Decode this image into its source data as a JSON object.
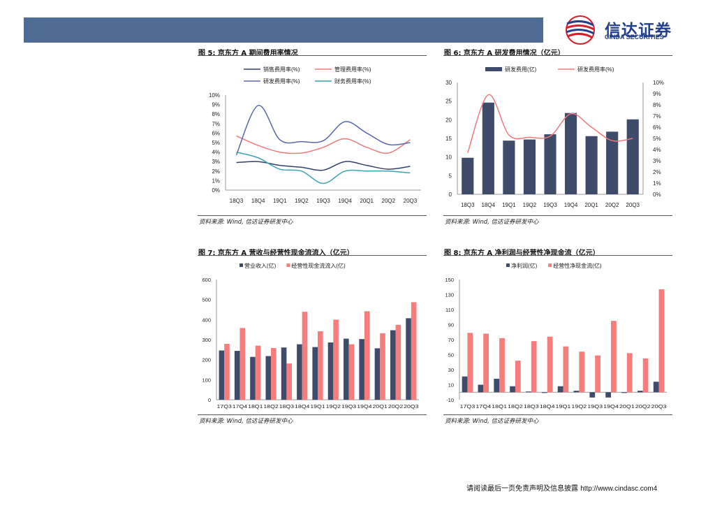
{
  "header": {
    "logo_cn": "信达证券",
    "logo_en": "CINDA SECURITIES",
    "colors": {
      "bar": "#4f6d94",
      "logo_blue": "#23418b",
      "logo_red": "#d71e2a"
    }
  },
  "fig5": {
    "title": "图 5:  京东方 A 期间费用率情况",
    "source": "资料来源:  Wind,  信达证券研发中心",
    "chart_data": {
      "type": "line",
      "categories": [
        "18Q3",
        "18Q4",
        "19Q1",
        "19Q2",
        "19Q3",
        "19Q4",
        "20Q1",
        "20Q2",
        "20Q3"
      ],
      "y_ticks": [
        "10%",
        "9%",
        "8%",
        "7%",
        "6%",
        "5%",
        "4%",
        "3%",
        "2%",
        "1%",
        "0%"
      ],
      "ylim": [
        0,
        10
      ],
      "legend_position": "top",
      "series": [
        {
          "name": "销售费用率(%)",
          "color": "#33406b",
          "values": [
            2.9,
            3.0,
            2.6,
            2.4,
            2.1,
            3.0,
            2.6,
            2.2,
            2.5
          ]
        },
        {
          "name": "管理费用率(%)",
          "color": "#f0797a",
          "values": [
            5.7,
            4.7,
            4.0,
            3.9,
            4.5,
            5.4,
            4.5,
            3.9,
            5.3
          ]
        },
        {
          "name": "研发费用率(%)",
          "color": "#5a66b0",
          "values": [
            3.7,
            8.9,
            5.3,
            5.1,
            5.2,
            7.2,
            6.0,
            4.8,
            5.0
          ]
        },
        {
          "name": "财务费用率(%)",
          "color": "#3ba3b0",
          "values": [
            4.0,
            3.4,
            2.2,
            2.0,
            0.7,
            2.0,
            2.0,
            2.0,
            1.8
          ]
        }
      ]
    }
  },
  "fig6": {
    "title": "图 6:  京东方 A 研发费用情况（亿元）",
    "source": "资料来源:  Wind,  信达证券研发中心",
    "chart_data": {
      "type": "bar",
      "categories": [
        "18Q3",
        "18Q4",
        "19Q1",
        "19Q2",
        "19Q3",
        "19Q4",
        "20Q1",
        "20Q2",
        "20Q3"
      ],
      "y_ticks_left": [
        "30",
        "25",
        "20",
        "15",
        "10",
        "5",
        "0"
      ],
      "y_ticks_right": [
        "10%",
        "9%",
        "8%",
        "7%",
        "6%",
        "5%",
        "4%",
        "3%",
        "2%",
        "1%",
        "0%"
      ],
      "ylim_left": [
        0,
        30
      ],
      "ylim_right": [
        0,
        10
      ],
      "legend_position": "top",
      "series": [
        {
          "name": "研发费用(亿)",
          "type": "bar",
          "axis": "left",
          "color": "#3e4b6b",
          "values": [
            9.8,
            24.6,
            14.4,
            14.7,
            16.1,
            21.8,
            15.6,
            16.8,
            20.1
          ]
        },
        {
          "name": "研发费用率(%)",
          "type": "line",
          "axis": "right",
          "color": "#f0797a",
          "values": [
            3.7,
            8.9,
            5.3,
            5.1,
            5.2,
            7.2,
            6.0,
            4.8,
            5.0
          ]
        }
      ]
    }
  },
  "fig7": {
    "title": "图 7:  京东方 A 营收与经营性现金流流入（亿元）",
    "source": "资料来源:  Wind,  信达证券研发中心",
    "chart_data": {
      "type": "bar",
      "categories": [
        "17Q3",
        "17Q4",
        "18Q1",
        "18Q2",
        "18Q3",
        "18Q4",
        "19Q1",
        "19Q2",
        "19Q3",
        "19Q4",
        "20Q1",
        "20Q2",
        "20Q3"
      ],
      "y_ticks": [
        "600",
        "500",
        "400",
        "300",
        "200",
        "100",
        "0"
      ],
      "ylim": [
        0,
        600
      ],
      "legend_position": "top",
      "series": [
        {
          "name": "营业收入(亿)",
          "color": "#3e4b6b",
          "values": [
            246,
            244,
            214,
            218,
            261,
            277,
            263,
            286,
            305,
            303,
            257,
            347,
            407
          ]
        },
        {
          "name": "经营性现金流流入(亿)",
          "color": "#f77d7d",
          "values": [
            279,
            358,
            270,
            258,
            181,
            439,
            342,
            400,
            277,
            442,
            332,
            374,
            487
          ]
        }
      ]
    }
  },
  "fig8": {
    "title": "图 8:  京东方 A 净利润与经营性净现金流（亿元）",
    "source": "资料来源:  Wind,  信达证券研发中心",
    "chart_data": {
      "type": "bar",
      "categories": [
        "17Q3",
        "17Q4",
        "18Q1",
        "18Q2",
        "18Q3",
        "18Q4",
        "19Q1",
        "19Q2",
        "19Q3",
        "19Q4",
        "20Q1",
        "20Q2",
        "20Q3"
      ],
      "y_ticks": [
        "150",
        "130",
        "110",
        "90",
        "70",
        "50",
        "30",
        "10",
        "-10"
      ],
      "ylim": [
        -10,
        150
      ],
      "legend_position": "top",
      "series": [
        {
          "name": "净利润(亿)",
          "color": "#3e4b6b",
          "values": [
            21,
            10,
            18,
            8,
            1,
            -1,
            8,
            2,
            -7,
            -7,
            -1,
            2,
            14
          ]
        },
        {
          "name": "经营性净现金流(亿)",
          "color": "#f77d7d",
          "values": [
            79,
            78,
            72,
            42,
            68,
            74,
            61,
            54,
            49,
            95,
            52,
            45,
            137
          ]
        }
      ]
    }
  },
  "footer": {
    "disclaimer": "请阅读最后一页免责声明及信息披露",
    "url": "http://www.cindasc.com",
    "page_number": "4"
  }
}
